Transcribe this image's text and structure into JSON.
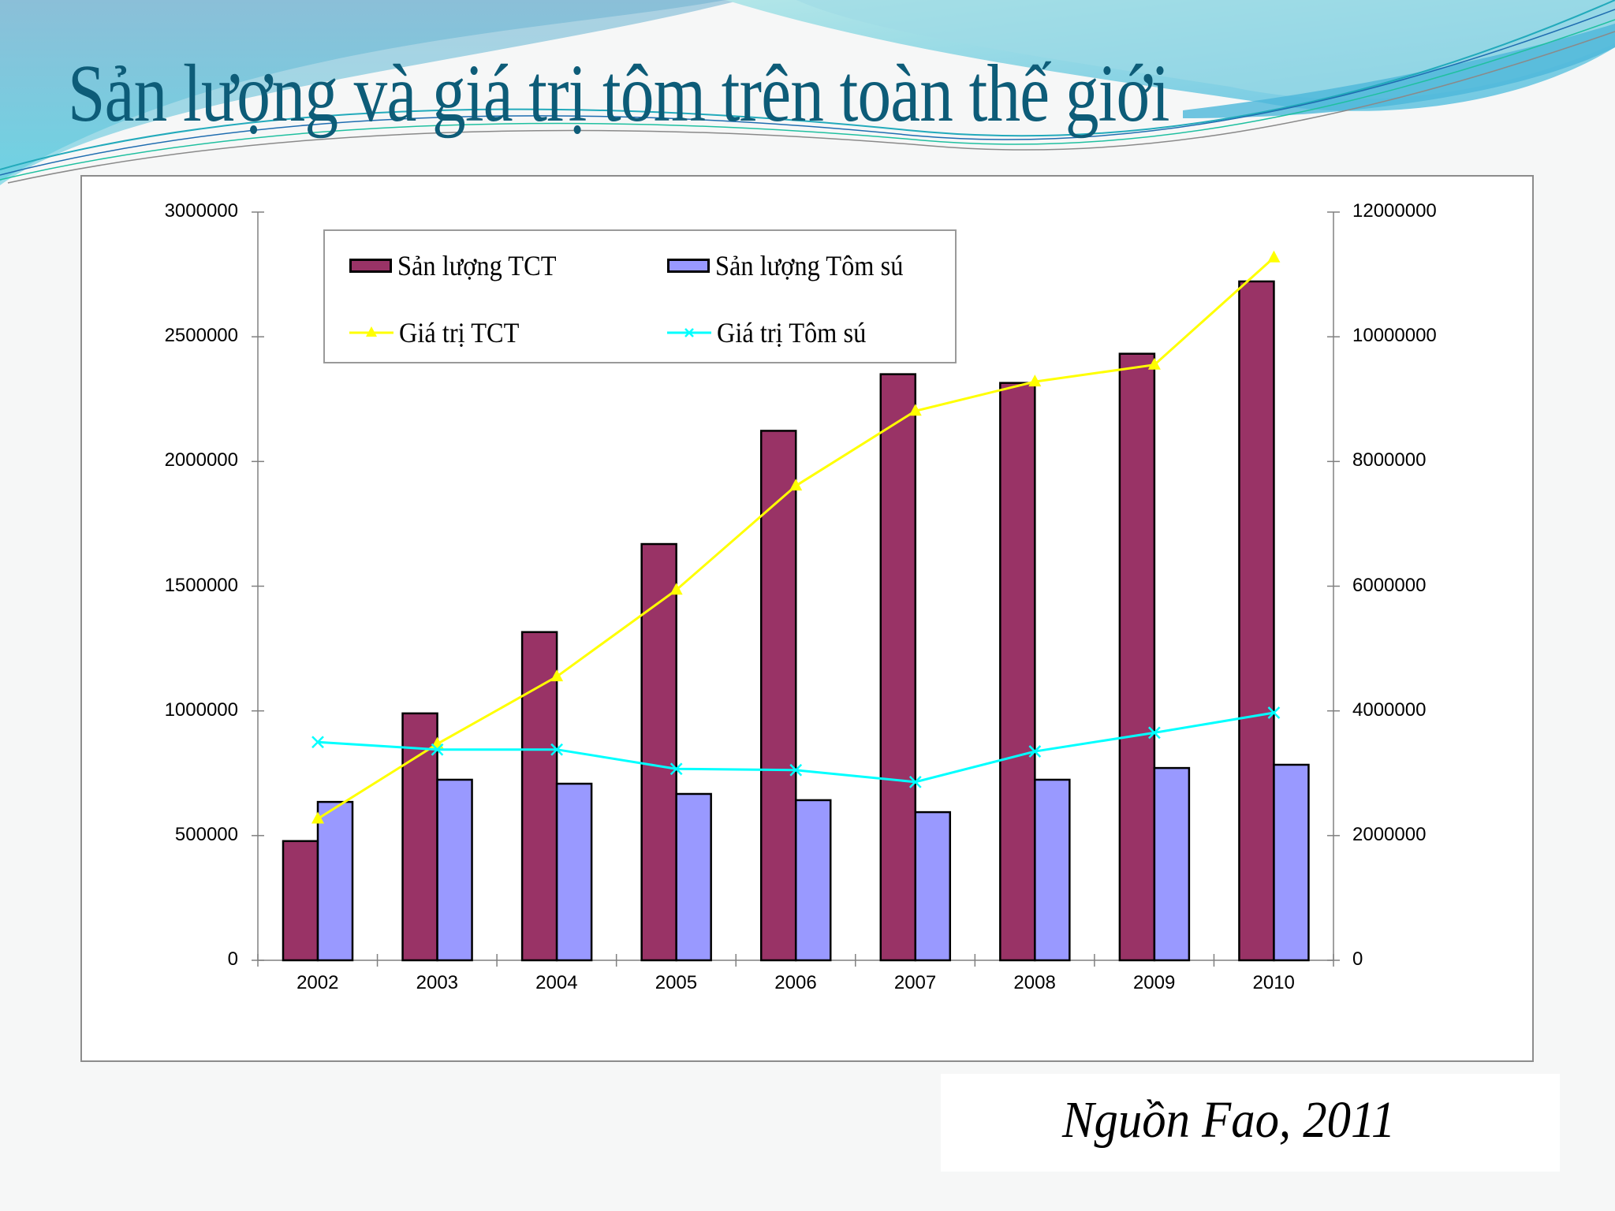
{
  "slide": {
    "title": "Sản lượng và giá trị tôm trên toàn thế giới",
    "source": "Nguồn Fao, 2011",
    "colors": {
      "title": "#0d5c78",
      "background": "#f6f7f7",
      "bg_wave_top": "#8fc3da",
      "bg_wave_light": "#a8dfe6"
    }
  },
  "chart_data": {
    "type": "bar",
    "title": "",
    "xlabel": "",
    "ylabel": "",
    "y2label": "",
    "categories": [
      "2002",
      "2003",
      "2004",
      "2005",
      "2006",
      "2007",
      "2008",
      "2009",
      "2010"
    ],
    "series": [
      {
        "name": "Sản lượng TCT",
        "type": "bar",
        "axis": "left",
        "color": "#993366",
        "values": [
          478000,
          990000,
          1316000,
          1669000,
          2123000,
          2350000,
          2315000,
          2432000,
          2722000
        ]
      },
      {
        "name": "Sản lượng Tôm sú",
        "type": "bar",
        "axis": "left",
        "color": "#9999ff",
        "values": [
          635000,
          724000,
          708000,
          667000,
          642000,
          594000,
          724000,
          771000,
          784000
        ]
      },
      {
        "name": "Giá trị TCT",
        "type": "line",
        "axis": "right",
        "marker": "triangle",
        "color": "#ffff00",
        "values": [
          2270000,
          3470000,
          4550000,
          5940000,
          7610000,
          8810000,
          9280000,
          9550000,
          11270000
        ]
      },
      {
        "name": "Giá trị Tôm sú",
        "type": "line",
        "axis": "right",
        "marker": "x",
        "color": "#00ffff",
        "values": [
          3500000,
          3380000,
          3380000,
          3070000,
          3050000,
          2860000,
          3350000,
          3650000,
          3970000
        ]
      }
    ],
    "ylim": [
      0,
      3000000
    ],
    "y2lim": [
      0,
      12000000
    ],
    "yticks": [
      "0",
      "500000",
      "1000000",
      "1500000",
      "2000000",
      "2500000",
      "3000000"
    ],
    "y2ticks": [
      "0",
      "2000000",
      "4000000",
      "6000000",
      "8000000",
      "10000000",
      "12000000"
    ],
    "grid": false,
    "legend": {
      "position": "top-left inside",
      "entries": [
        "Sản lượng TCT",
        "Sản lượng Tôm sú",
        "Giá trị TCT",
        "Giá trị Tôm sú"
      ]
    }
  }
}
